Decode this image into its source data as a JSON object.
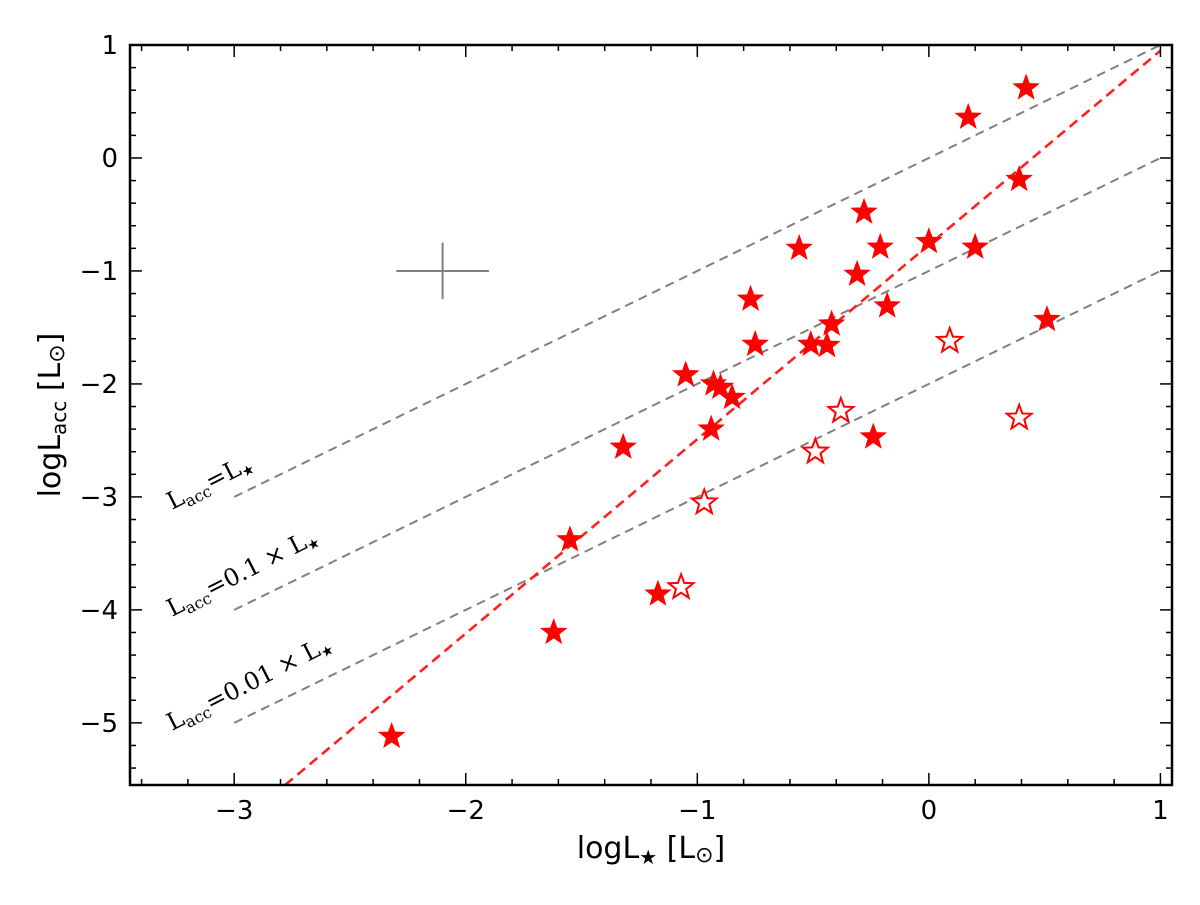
{
  "chart_data": {
    "type": "scatter",
    "title": "",
    "xlabel": {
      "base": "logL",
      "sub": "★",
      "unit_open": " [L",
      "unit_sym": "⊙",
      "unit_close": "]"
    },
    "ylabel": {
      "base": "logL",
      "sub": "acc",
      "unit_open": " [L",
      "unit_sym": "⊙",
      "unit_close": "]"
    },
    "xlim": [
      -3.45,
      1.05
    ],
    "ylim": [
      -5.55,
      1.0
    ],
    "x_ticks": [
      -3,
      -2,
      -1,
      0,
      1
    ],
    "x_tick_labels": [
      "−3",
      "−2",
      "−1",
      "0",
      "1"
    ],
    "y_ticks": [
      -5,
      -4,
      -3,
      -2,
      -1,
      0,
      1
    ],
    "y_tick_labels": [
      "−5",
      "−4",
      "−3",
      "−2",
      "−1",
      "0",
      "1"
    ],
    "grid": false,
    "series": [
      {
        "marker": "filled-star",
        "color": "#ff0000",
        "points": [
          {
            "x": -2.32,
            "y": -5.12
          },
          {
            "x": -1.62,
            "y": -4.2
          },
          {
            "x": -1.55,
            "y": -3.38
          },
          {
            "x": -1.32,
            "y": -2.56
          },
          {
            "x": -1.17,
            "y": -3.86
          },
          {
            "x": -1.05,
            "y": -1.92
          },
          {
            "x": -0.94,
            "y": -2.4
          },
          {
            "x": -0.93,
            "y": -2.0
          },
          {
            "x": -0.9,
            "y": -2.03
          },
          {
            "x": -0.85,
            "y": -2.12
          },
          {
            "x": -0.77,
            "y": -1.25
          },
          {
            "x": -0.75,
            "y": -1.65
          },
          {
            "x": -0.56,
            "y": -0.8
          },
          {
            "x": -0.51,
            "y": -1.65
          },
          {
            "x": -0.44,
            "y": -1.66
          },
          {
            "x": -0.42,
            "y": -1.47
          },
          {
            "x": -0.31,
            "y": -1.03
          },
          {
            "x": -0.28,
            "y": -0.48
          },
          {
            "x": -0.24,
            "y": -2.47
          },
          {
            "x": -0.21,
            "y": -0.79
          },
          {
            "x": -0.18,
            "y": -1.31
          },
          {
            "x": 0.0,
            "y": -0.74
          },
          {
            "x": 0.17,
            "y": 0.36
          },
          {
            "x": 0.2,
            "y": -0.79
          },
          {
            "x": 0.39,
            "y": -0.19
          },
          {
            "x": 0.42,
            "y": 0.62
          },
          {
            "x": 0.51,
            "y": -1.43
          }
        ]
      },
      {
        "marker": "open-star",
        "color": "#ff0000",
        "points": [
          {
            "x": -1.07,
            "y": -3.8
          },
          {
            "x": -0.97,
            "y": -3.05
          },
          {
            "x": -0.49,
            "y": -2.6
          },
          {
            "x": -0.38,
            "y": -2.24
          },
          {
            "x": 0.09,
            "y": -1.62
          },
          {
            "x": 0.39,
            "y": -2.3
          }
        ]
      }
    ],
    "reference_lines": [
      {
        "label": {
          "base": "L",
          "sub": "acc",
          "mid": "=L",
          "tail": "★"
        },
        "color": "#808080",
        "dash": "dashed",
        "points": [
          {
            "x": -3.0,
            "y": -3.0
          },
          {
            "x": 1.0,
            "y": 1.0
          }
        ]
      },
      {
        "label": {
          "base": "L",
          "sub": "acc",
          "mid": "=0.1 × L",
          "tail": "★"
        },
        "color": "#808080",
        "dash": "dashed",
        "points": [
          {
            "x": -3.0,
            "y": -4.0
          },
          {
            "x": 1.0,
            "y": 0.0
          }
        ]
      },
      {
        "label": {
          "base": "L",
          "sub": "acc",
          "mid": "=0.01 × L",
          "tail": "★"
        },
        "color": "#808080",
        "dash": "dashed",
        "points": [
          {
            "x": -3.0,
            "y": -5.0
          },
          {
            "x": 1.0,
            "y": -1.0
          }
        ]
      }
    ],
    "fit_line": {
      "color": "#ff2020",
      "dash": "dashed",
      "points": [
        {
          "x": -2.78,
          "y": -5.55
        },
        {
          "x": 1.0,
          "y": 0.95
        }
      ]
    },
    "error_bar": {
      "color": "#808080",
      "x": -2.1,
      "y": -1.0,
      "x_err": 0.2,
      "y_err": 0.25
    }
  }
}
